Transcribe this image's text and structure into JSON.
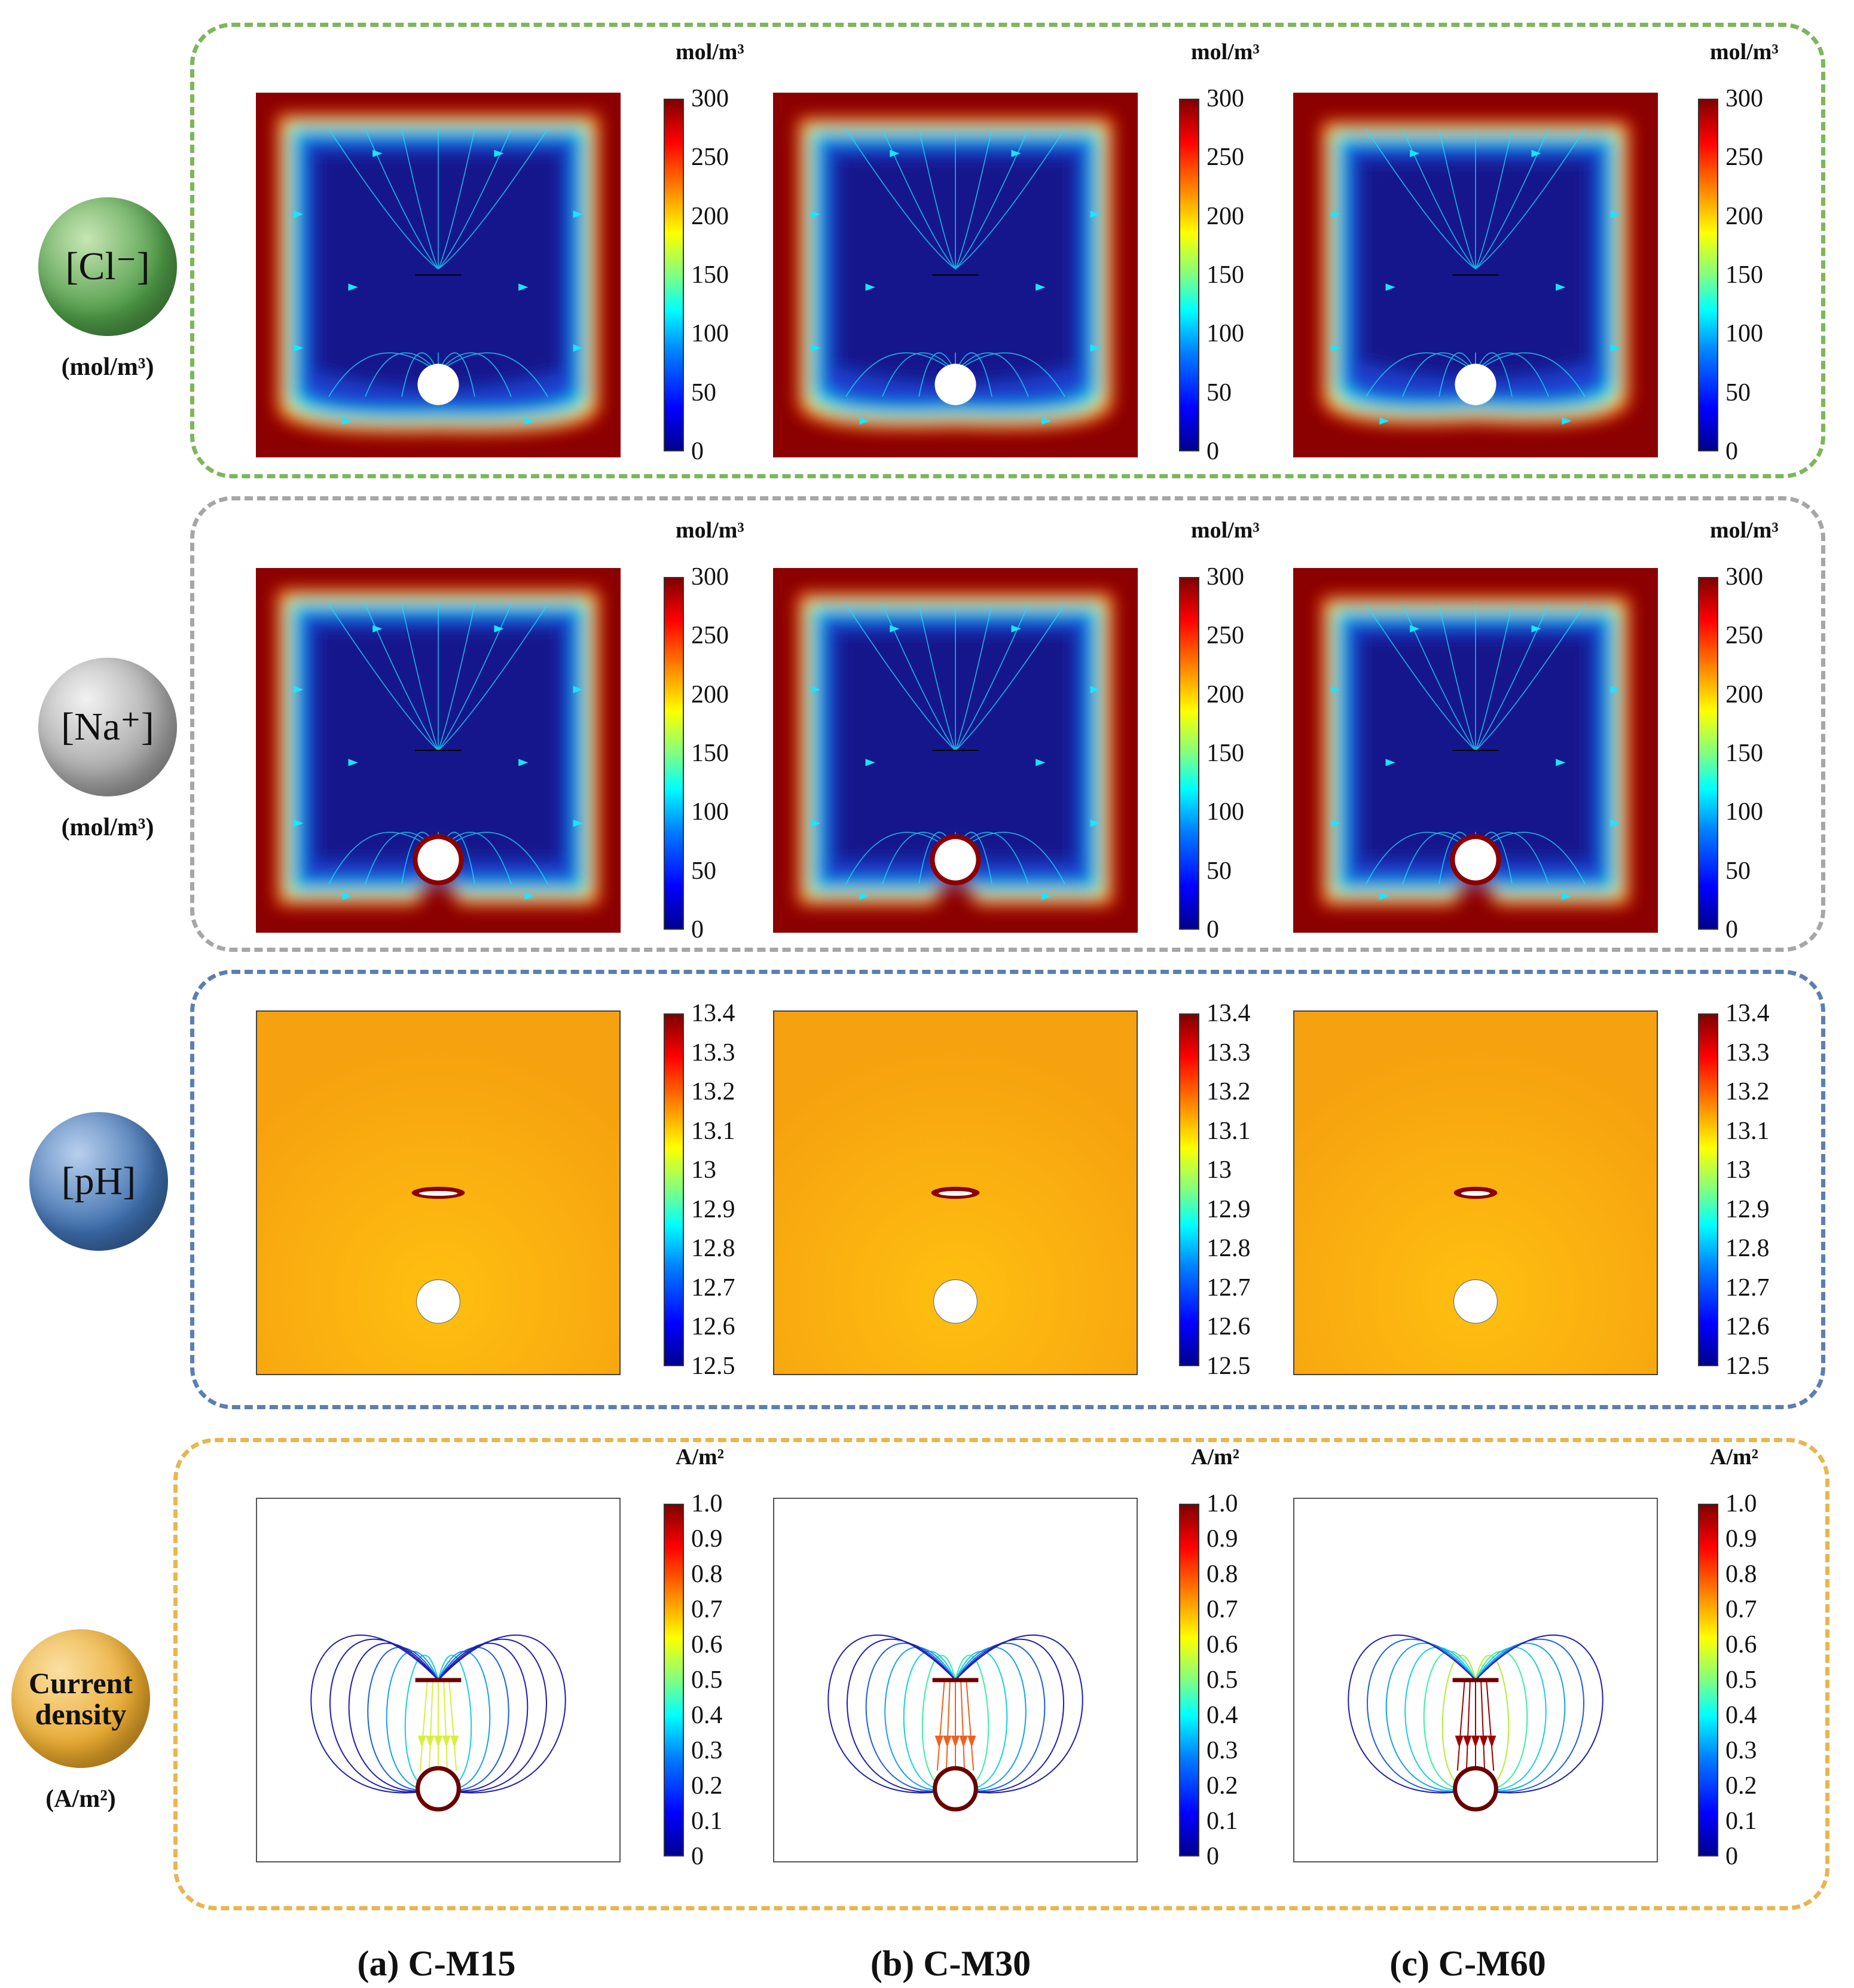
{
  "colors": {
    "cl_border": "#7db65b",
    "na_border": "#a6a6a6",
    "ph_border": "#5b7fb0",
    "cd_border": "#e7b64e",
    "cl_sphere": "#4e9b47",
    "na_sphere": "#a5a5a5",
    "ph_sphere": "#3e6fae",
    "cd_sphere": "#e8a92f",
    "field_red": "#8b0000",
    "field_blue": "#14168c",
    "ph_orange": "#f6a10f",
    "stream_cyan": "#19e6ff"
  },
  "rows": [
    {
      "id": "cl",
      "species": "[Cl⁻]",
      "unit": "(mol/m³)",
      "colorbar_unit": "mol/m³",
      "ticks": [
        "300",
        "250",
        "200",
        "150",
        "100",
        "50",
        "0"
      ]
    },
    {
      "id": "na",
      "species": "[Na⁺]",
      "unit": "(mol/m³)",
      "colorbar_unit": "mol/m³",
      "ticks": [
        "300",
        "250",
        "200",
        "150",
        "100",
        "50",
        "0"
      ]
    },
    {
      "id": "ph",
      "species": "[pH]",
      "unit": "",
      "colorbar_unit": "",
      "ticks": [
        "13.4",
        "13.3",
        "13.2",
        "13.1",
        "13",
        "12.9",
        "12.8",
        "12.7",
        "12.6",
        "12.5"
      ]
    },
    {
      "id": "cd",
      "species": "Current density",
      "species_line1": "Current",
      "species_line2": "density",
      "unit": "(A/m²)",
      "colorbar_unit": "A/m²",
      "ticks": [
        "1.0",
        "0.9",
        "0.8",
        "0.7",
        "0.6",
        "0.5",
        "0.4",
        "0.3",
        "0.2",
        "0.1",
        "0"
      ]
    }
  ],
  "columns": [
    {
      "caption": "(a) C-M15"
    },
    {
      "caption": "(b) C-M30"
    },
    {
      "caption": "(c) C-M60"
    }
  ]
}
